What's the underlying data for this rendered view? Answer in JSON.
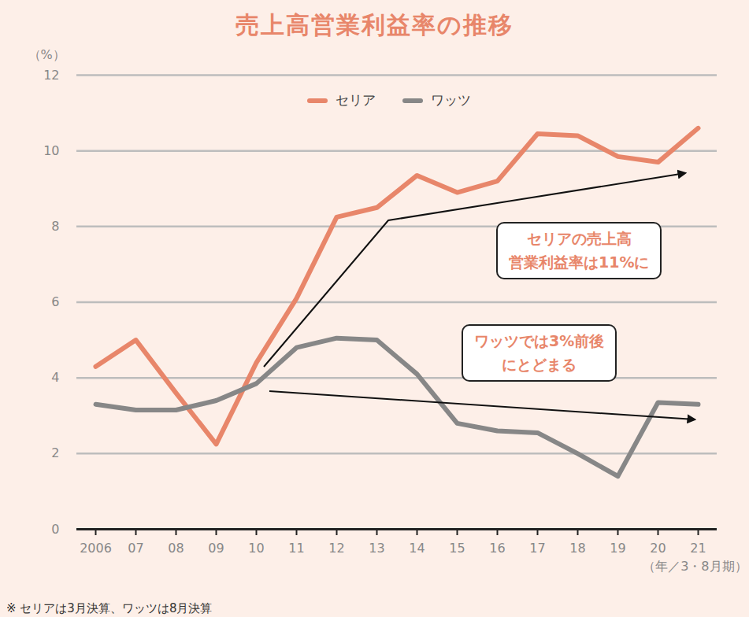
{
  "chart_data": {
    "type": "line",
    "title": "売上高営業利益率の推移",
    "categories": [
      "2006",
      "07",
      "08",
      "09",
      "10",
      "11",
      "12",
      "13",
      "14",
      "15",
      "16",
      "17",
      "18",
      "19",
      "20",
      "21"
    ],
    "series": [
      {
        "name": "セリア",
        "color": "#e8866a",
        "values": [
          4.3,
          5.0,
          3.6,
          2.25,
          4.4,
          6.1,
          8.25,
          8.5,
          9.35,
          8.9,
          9.2,
          10.45,
          10.4,
          9.85,
          9.7,
          10.6
        ]
      },
      {
        "name": "ワッツ",
        "color": "#878787",
        "values": [
          3.3,
          3.15,
          3.15,
          3.4,
          3.85,
          4.8,
          5.05,
          5.0,
          4.1,
          2.8,
          2.6,
          2.55,
          2.0,
          1.4,
          3.35,
          3.3
        ]
      }
    ],
    "y_label": "（%）",
    "x_label": "（年／3・8月期）",
    "ylim": [
      0,
      12
    ],
    "yticks": [
      0,
      2,
      4,
      6,
      8,
      10,
      12
    ],
    "grid": true,
    "legend": "top",
    "annotations": [
      {
        "text": "セリアの売上高\n営業利益率は11%に"
      },
      {
        "text": "ワッツでは3%前後\nにとどまる"
      }
    ],
    "footnote": "※ セリアは3月決算、ワッツは8月決算"
  }
}
